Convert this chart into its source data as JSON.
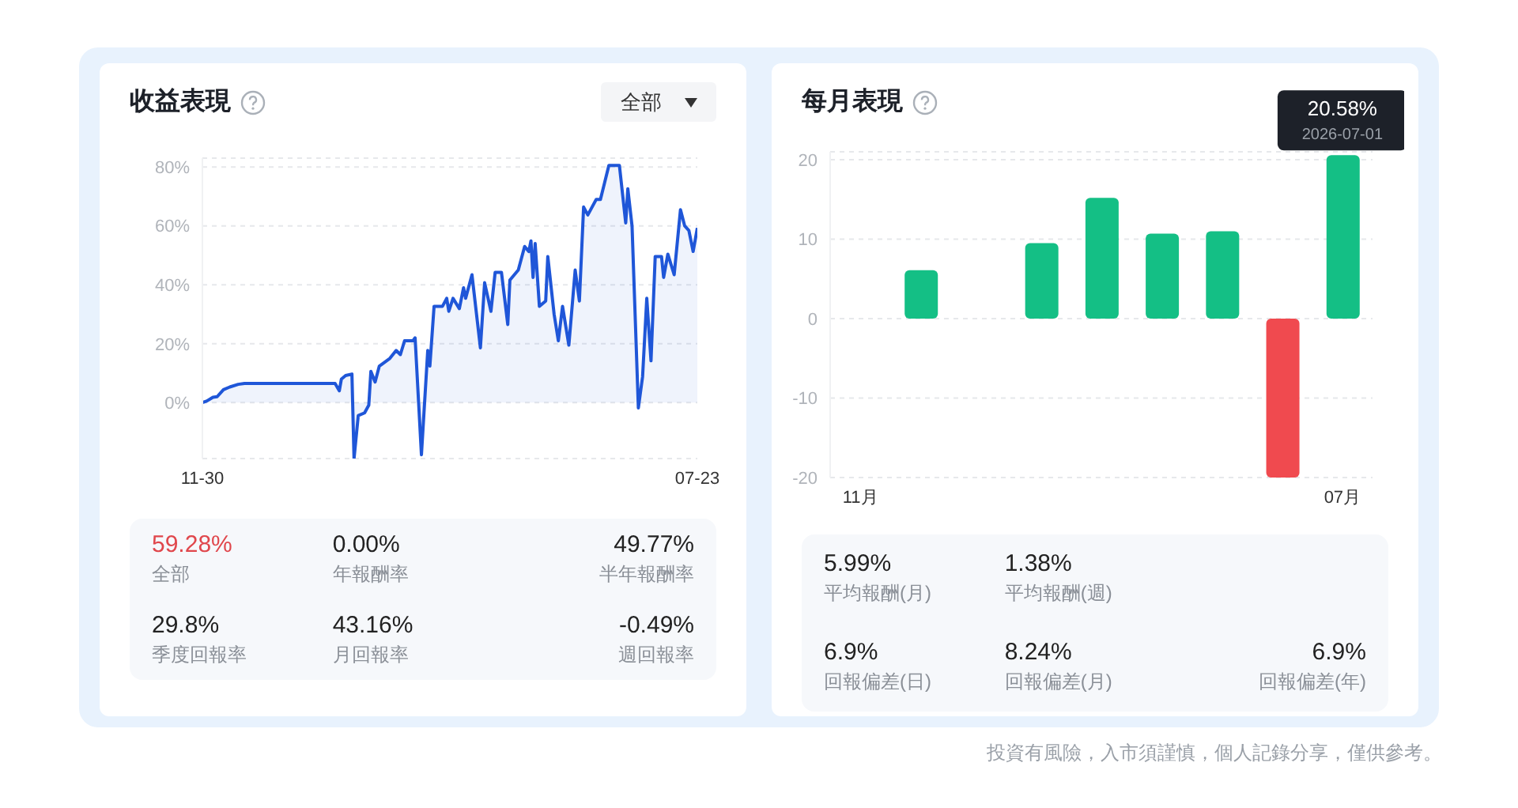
{
  "chart_data": [
    {
      "type": "area",
      "title": "收益表現",
      "x": [
        "2025-11-30",
        "2025-12-02",
        "2025-12-05",
        "2025-12-07",
        "2025-12-10",
        "2025-12-13",
        "2025-12-17",
        "2025-12-20",
        "2026-02-01",
        "2026-02-03",
        "2026-02-04",
        "2026-02-06",
        "2026-02-09",
        "2026-02-10",
        "2026-02-12",
        "2026-02-15",
        "2026-02-17",
        "2026-02-18",
        "2026-02-20",
        "2026-02-22",
        "2026-02-27",
        "2026-03-02",
        "2026-03-04",
        "2026-03-06",
        "2026-03-10",
        "2026-03-11",
        "2026-03-14",
        "2026-03-17",
        "2026-03-18",
        "2026-03-20",
        "2026-03-24",
        "2026-03-26",
        "2026-03-27",
        "2026-03-29",
        "2026-04-01",
        "2026-04-03",
        "2026-04-04",
        "2026-04-07",
        "2026-04-11",
        "2026-04-13",
        "2026-04-16",
        "2026-04-18",
        "2026-04-21",
        "2026-04-24",
        "2026-04-25",
        "2026-04-29",
        "2026-05-02",
        "2026-05-04",
        "2026-05-05",
        "2026-05-06",
        "2026-05-07",
        "2026-05-09",
        "2026-05-12",
        "2026-05-13",
        "2026-05-16",
        "2026-05-18",
        "2026-05-20",
        "2026-05-23",
        "2026-05-26",
        "2026-05-28",
        "2026-05-30",
        "2026-06-01",
        "2026-06-05",
        "2026-06-07",
        "2026-06-11",
        "2026-06-16",
        "2026-06-19",
        "2026-06-20",
        "2026-06-22",
        "2026-06-25",
        "2026-06-27",
        "2026-06-29",
        "2026-07-01",
        "2026-07-03",
        "2026-07-06",
        "2026-07-07",
        "2026-07-09",
        "2026-07-12",
        "2026-07-15",
        "2026-07-17",
        "2026-07-19",
        "2026-07-21",
        "2026-07-23"
      ],
      "series": [
        {
          "color": "#1f56d8",
          "values": [
            0,
            0.5,
            1.8,
            2,
            4.4,
            5.3,
            6.2,
            6.5,
            6.5,
            4,
            8,
            9.2,
            9.7,
            -19,
            -4.4,
            -3.5,
            -0.9,
            10.6,
            7,
            12.4,
            15,
            17.7,
            16.3,
            21,
            21,
            22,
            -17.7,
            17.7,
            12.4,
            32.7,
            32.7,
            35.4,
            31,
            35.4,
            31.9,
            39,
            35.4,
            43.4,
            18.6,
            40.7,
            31,
            44.2,
            44.2,
            26.5,
            41.6,
            45,
            53,
            51.3,
            54.9,
            42.5,
            54,
            32.7,
            34.5,
            49.6,
            30,
            21,
            32.7,
            19.5,
            45,
            34.5,
            66.4,
            63.7,
            69,
            69,
            80.5,
            80.5,
            61,
            72.6,
            60,
            -1.8,
            8.8,
            35.4,
            14.2,
            49.6,
            49.6,
            42.5,
            50.4,
            43.4,
            65.5,
            60,
            58.4,
            51.3,
            59.3
          ]
        }
      ],
      "xlim": [
        "2025-11-30",
        "2026-07-23"
      ],
      "xticks": [
        {
          "value": "2025-11-30",
          "label": "11-30"
        },
        {
          "value": "2026-07-23",
          "label": "07-23"
        }
      ],
      "ylim": [
        -19,
        83
      ],
      "yticks": [
        {
          "value": 0,
          "label": "0%"
        },
        {
          "value": 20,
          "label": "20%"
        },
        {
          "value": 40,
          "label": "40%"
        },
        {
          "value": 60,
          "label": "60%"
        },
        {
          "value": 80,
          "label": "80%"
        }
      ],
      "grid": "y",
      "annotations": [
        "全部",
        "59.28%",
        "全部",
        "0.00%",
        "年報酬率",
        "49.77%",
        "半年報酬率",
        "29.8%",
        "季度回報率",
        "43.16%",
        "月回報率",
        "-0.49%",
        "週回報率"
      ]
    },
    {
      "type": "bar",
      "title": "每月表現",
      "categories": [
        "11月",
        null,
        null,
        null,
        null,
        null,
        null,
        null,
        "07月"
      ],
      "values": [
        null,
        6.1,
        null,
        9.5,
        15.2,
        10.7,
        11,
        -20,
        20.58
      ],
      "colors": [
        "#14bf85",
        "#14bf85",
        "#14bf85",
        "#14bf85",
        "#14bf85",
        "#14bf85",
        "#14bf85",
        "#f04a4f",
        "#14bf85"
      ],
      "value_labels": [
        null,
        null,
        null,
        null,
        null,
        null,
        null,
        null,
        "20.58%"
      ],
      "ylim": [
        -20,
        21
      ],
      "yticks": [
        -20,
        -10,
        0,
        10,
        20
      ],
      "grid": "y",
      "annotations": [
        {
          "text": "2026-07-01",
          "x": "07月",
          "y": 20.58
        },
        "5.99%",
        "平均報酬(月)",
        "1.38%",
        "平均報酬(週)",
        "6.9%",
        "回報偏差(日)",
        "8.24%",
        "回報偏差(月)",
        "6.9%",
        "回報偏差(年)",
        "投資有風險，入市須謹慎，個人記錄分享，僅供參考。"
      ]
    }
  ]
}
